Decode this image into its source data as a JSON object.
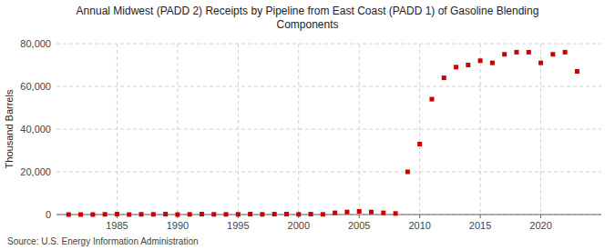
{
  "chart_data": {
    "type": "scatter",
    "title": "Annual Midwest (PADD 2) Receipts by Pipeline from East Coast (PADD 1) of Gasoline Blending",
    "subtitle": "Components",
    "ylabel": "Thousand Barrels",
    "annotations": [
      "Source: U.S. Energy Information Administration"
    ],
    "x": [
      1981,
      1982,
      1983,
      1984,
      1985,
      1986,
      1987,
      1988,
      1989,
      1990,
      1991,
      1992,
      1993,
      1994,
      1995,
      1996,
      1997,
      1998,
      1999,
      2000,
      2001,
      2002,
      2003,
      2004,
      2005,
      2006,
      2007,
      2008,
      2009,
      2010,
      2011,
      2012,
      2013,
      2014,
      2015,
      2016,
      2017,
      2018,
      2019,
      2020,
      2021,
      2022,
      2023
    ],
    "values": [
      0,
      0,
      0,
      100,
      200,
      0,
      100,
      100,
      200,
      0,
      100,
      200,
      100,
      100,
      100,
      200,
      100,
      200,
      200,
      100,
      200,
      100,
      800,
      1200,
      1500,
      1200,
      800,
      500,
      20000,
      33000,
      54000,
      64000,
      69000,
      70000,
      72000,
      71000,
      75000,
      76000,
      76000,
      71000,
      75000,
      76000,
      67000
    ],
    "color": "#cc0000",
    "marker": "square",
    "xlim": [
      1980,
      2025
    ],
    "xticks": [
      1985,
      1990,
      1995,
      2000,
      2005,
      2010,
      2015,
      2020
    ],
    "ylim": [
      0,
      80000
    ],
    "yticks": [
      0,
      {
        "value": 20000,
        "label": "20,000"
      },
      {
        "value": 40000,
        "label": "40,000"
      },
      {
        "value": 60000,
        "label": "60,000"
      },
      {
        "value": 80000,
        "label": "80,000"
      }
    ],
    "grid": true
  }
}
